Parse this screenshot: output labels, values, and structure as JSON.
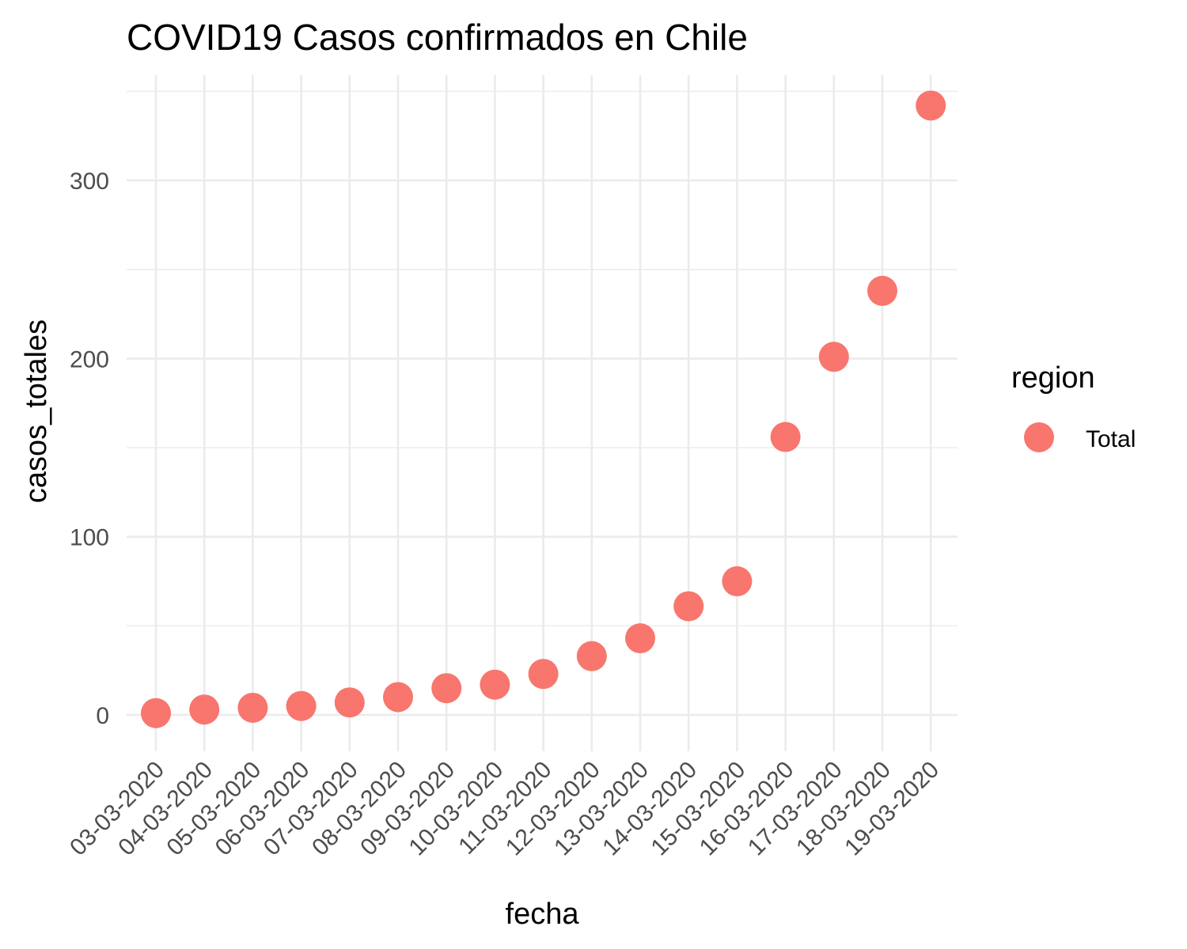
{
  "chart_data": {
    "type": "scatter",
    "title": "COVID19 Casos confirmados en Chile",
    "xlabel": "fecha",
    "ylabel": "casos_totales",
    "categories": [
      "03-03-2020",
      "04-03-2020",
      "05-03-2020",
      "06-03-2020",
      "07-03-2020",
      "08-03-2020",
      "09-03-2020",
      "10-03-2020",
      "11-03-2020",
      "12-03-2020",
      "13-03-2020",
      "14-03-2020",
      "15-03-2020",
      "16-03-2020",
      "17-03-2020",
      "18-03-2020",
      "19-03-2020"
    ],
    "series": [
      {
        "name": "Total",
        "color": "#F8766D",
        "values": [
          1,
          3,
          4,
          5,
          7,
          10,
          15,
          17,
          23,
          33,
          43,
          61,
          75,
          156,
          201,
          238,
          342
        ]
      }
    ],
    "y_ticks": [
      0,
      100,
      200,
      300
    ],
    "ylim": [
      -20,
      352
    ],
    "grid": true,
    "legend": {
      "title": "region",
      "position": "right"
    }
  }
}
